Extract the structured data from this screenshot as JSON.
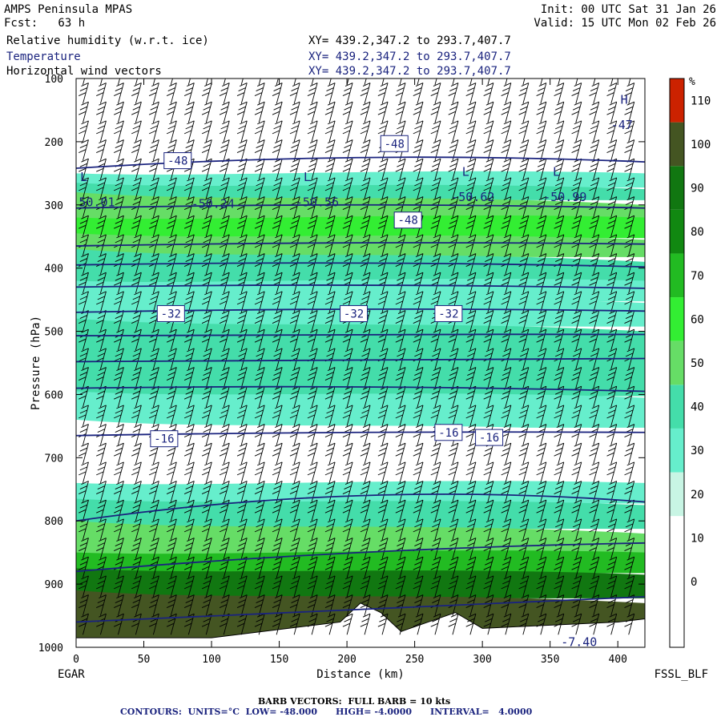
{
  "header": {
    "model": "AMPS Peninsula MPAS",
    "fcst": "Fcst:   63 h",
    "init": "Init: 00 UTC Sat 31 Jan 26",
    "valid": "Valid: 15 UTC Mon 02 Feb 26",
    "fields": [
      {
        "name": "Relative humidity (w.r.t. ice)",
        "xy": "XY= 439.2,347.2 to 293.7,407.7"
      },
      {
        "name": "Temperature",
        "xy": "XY= 439.2,347.2 to 293.7,407.7"
      },
      {
        "name": "Horizontal wind vectors",
        "xy": "XY= 439.2,347.2 to 293.7,407.7"
      }
    ]
  },
  "chart_data": {
    "type": "heatmap",
    "xlabel": "Distance (km)",
    "ylabel": "Pressure (hPa)",
    "xlim": [
      0,
      420
    ],
    "ylim": [
      1000,
      100
    ],
    "x_ticks": [
      0,
      50,
      100,
      150,
      200,
      250,
      300,
      350,
      400
    ],
    "y_ticks": [
      100,
      200,
      300,
      400,
      500,
      600,
      700,
      800,
      900,
      1000
    ],
    "left_label": "EGAR",
    "right_label": "FSSL_BLF",
    "colorbar": {
      "unit": "%",
      "levels": [
        0,
        10,
        20,
        30,
        40,
        50,
        60,
        70,
        80,
        90,
        100,
        110
      ],
      "colors": [
        "#ffffff",
        "#ffffff",
        "#ffffff",
        "#c8f5e4",
        "#66eecc",
        "#44ddaa",
        "#66dd66",
        "#33ee33",
        "#22bb22",
        "#118811",
        "#117711",
        "#445522",
        "#cc2200"
      ]
    },
    "rh_bands": [
      {
        "p": 250,
        "rh": 35
      },
      {
        "p": 270,
        "rh": 45
      },
      {
        "p": 290,
        "rh": 55
      },
      {
        "p": 320,
        "rh": 65
      },
      {
        "p": 350,
        "rh": 55
      },
      {
        "p": 380,
        "rh": 40
      },
      {
        "p": 420,
        "rh": 30
      },
      {
        "p": 450,
        "rh": 35
      },
      {
        "p": 490,
        "rh": 45
      },
      {
        "p": 540,
        "rh": 40
      },
      {
        "p": 600,
        "rh": 30
      },
      {
        "p": 650,
        "rh": 15
      },
      {
        "p": 740,
        "rh": 30
      },
      {
        "p": 770,
        "rh": 40
      },
      {
        "p": 810,
        "rh": 55
      },
      {
        "p": 850,
        "rh": 75
      },
      {
        "p": 880,
        "rh": 95
      },
      {
        "p": 920,
        "rh": 105
      }
    ],
    "temperature_contours": [
      {
        "level": -48,
        "p": [
          242,
          225,
          232
        ],
        "label_at": [
          [
            75,
            230
          ],
          [
            235,
            203
          ]
        ]
      },
      {
        "level": -48,
        "p": [
          305,
          300,
          305
        ],
        "label_at": [
          [
            245,
            324
          ]
        ]
      },
      {
        "level": -44,
        "p": [
          365,
          360,
          362
        ]
      },
      {
        "level": -40,
        "p": [
          395,
          392,
          398
        ]
      },
      {
        "level": -36,
        "p": [
          430,
          427,
          432
        ]
      },
      {
        "level": -32,
        "p": [
          470,
          465,
          468
        ],
        "label_at": [
          [
            70,
            472
          ],
          [
            205,
            472
          ],
          [
            275,
            472
          ]
        ]
      },
      {
        "level": -28,
        "p": [
          507,
          505,
          505
        ]
      },
      {
        "level": -24,
        "p": [
          548,
          545,
          543
        ]
      },
      {
        "level": -20,
        "p": [
          590,
          588,
          595
        ]
      },
      {
        "level": -16,
        "p": [
          665,
          660,
          660
        ],
        "label_at": [
          [
            65,
            670
          ],
          [
            275,
            660
          ],
          [
            305,
            668
          ]
        ]
      },
      {
        "level": -12,
        "p": [
          800,
          760,
          770
        ]
      },
      {
        "level": -8,
        "p": [
          880,
          850,
          835
        ]
      },
      {
        "level": -4,
        "p": [
          960,
          940,
          920
        ]
      }
    ],
    "annotations": [
      {
        "text": "L",
        "x": 3,
        "p": 262
      },
      {
        "text": "50.01",
        "x": 2,
        "p": 302
      },
      {
        "text": "-50.24",
        "x": 85,
        "p": 305
      },
      {
        "text": "L",
        "x": 168,
        "p": 262
      },
      {
        "text": "-50.56",
        "x": 162,
        "p": 302
      },
      {
        "text": "L",
        "x": 285,
        "p": 254
      },
      {
        "text": "-50.62",
        "x": 277,
        "p": 294
      },
      {
        "text": "L",
        "x": 352,
        "p": 254
      },
      {
        "text": "-50.99",
        "x": 345,
        "p": 294
      },
      {
        "text": "H",
        "x": 402,
        "p": 140
      },
      {
        "text": "-47",
        "x": 395,
        "p": 180
      },
      {
        "text": "-7.40",
        "x": 358,
        "p": 998
      }
    ],
    "terrain_km": [
      0,
      100,
      195,
      210,
      225,
      240,
      260,
      280,
      300,
      350,
      400,
      420
    ],
    "terrain_p": [
      985,
      985,
      960,
      930,
      945,
      975,
      960,
      945,
      970,
      965,
      960,
      955
    ]
  },
  "footer": {
    "barb": "BARB VECTORS:  FULL BARB = 10 kts",
    "contours": "CONTOURS:  UNITS=°C  LOW= -48.000      HIGH= -4.0000      INTERVAL=   4.0000"
  }
}
